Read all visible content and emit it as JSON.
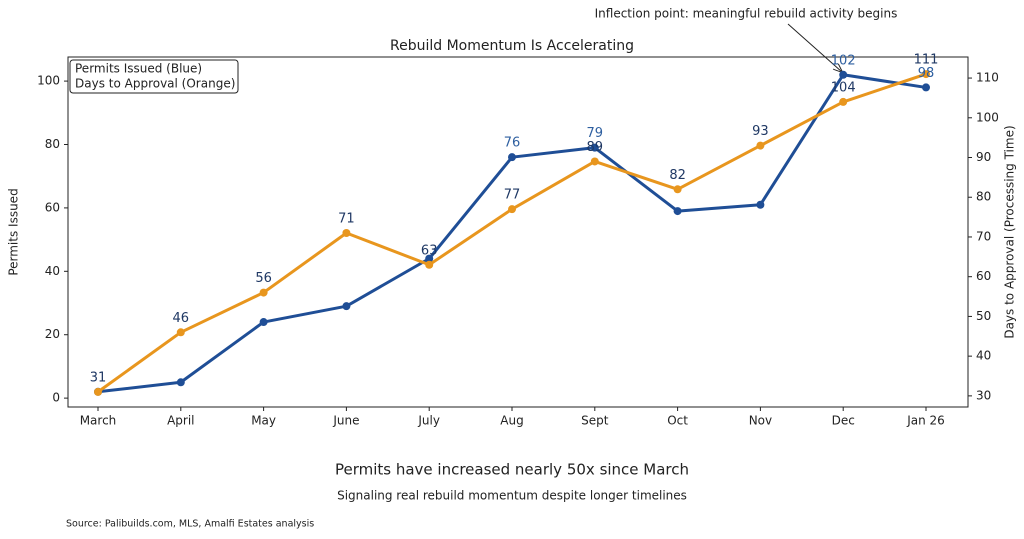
{
  "chart_data": {
    "type": "line",
    "title": "Rebuild Momentum Is Accelerating",
    "subtitle": "Permits have increased nearly 50x since March",
    "caption": "Signaling real rebuild momentum despite longer timelines",
    "source": "Source: Palibuilds.com, MLS, Amalfi Estates analysis",
    "annotation": "Inflection point: meaningful rebuild activity begins",
    "y_label": "Permits Issued",
    "y2_label": "Days to Approval (Processing Time)",
    "categories": [
      "March",
      "April",
      "May",
      "June",
      "July",
      "Aug",
      "Sept",
      "Oct",
      "Nov",
      "Dec",
      "Jan 26"
    ],
    "series": [
      {
        "name": "Permits Issued (Blue)",
        "color": "#1f4e96",
        "label_color": "#2e5fa0",
        "values": [
          2,
          5,
          24,
          29,
          44,
          76,
          79,
          59,
          61,
          102,
          98
        ],
        "value_labels": [
          null,
          null,
          null,
          null,
          null,
          "76",
          "79",
          null,
          null,
          "102",
          "98"
        ]
      },
      {
        "name": "Days to Approval (Orange)",
        "color": "#e8961e",
        "label_color": "#1f3864",
        "axis": "y2",
        "values": [
          31,
          46,
          56,
          71,
          63,
          77,
          89,
          82,
          93,
          104,
          111
        ]
      }
    ],
    "ylim": [
      -2.8,
      107.6
    ],
    "yticks": [
      0,
      20,
      40,
      60,
      80,
      100
    ],
    "y2lim": [
      27.2,
      115.3
    ],
    "y2ticks": [
      30,
      40,
      50,
      60,
      70,
      80,
      90,
      100,
      110
    ],
    "legend_position": "upper left"
  }
}
